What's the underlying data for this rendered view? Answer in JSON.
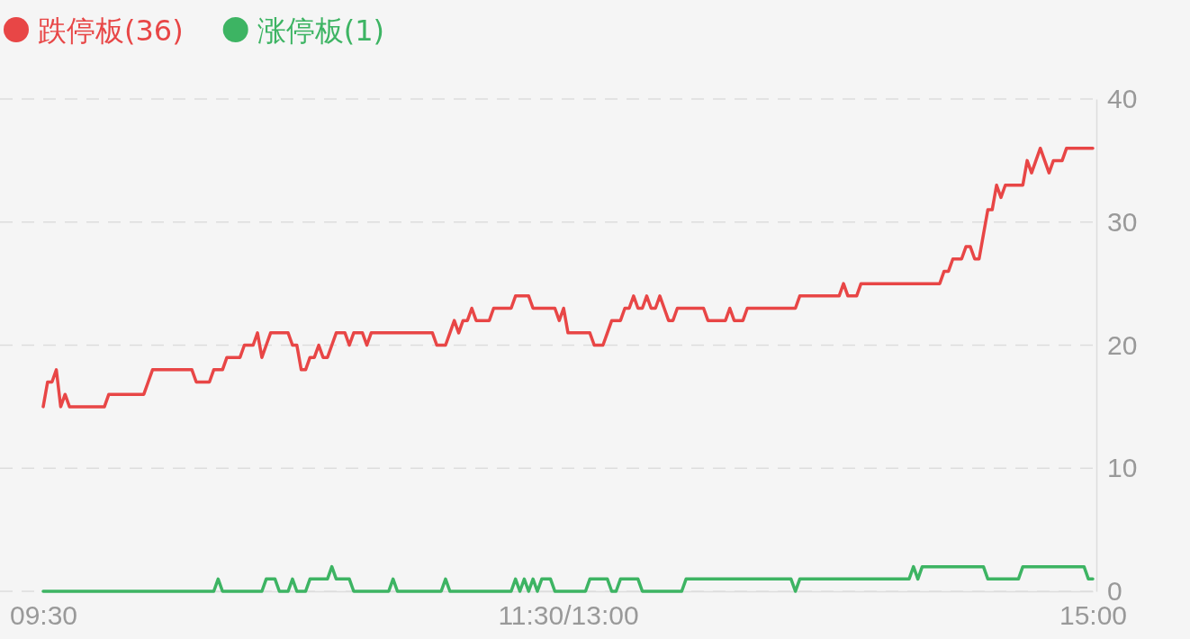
{
  "chart_data": {
    "type": "line",
    "categories": [
      "09:30",
      null,
      null,
      null,
      null,
      null,
      null,
      null,
      null,
      null,
      null,
      null,
      null,
      null,
      null,
      null,
      null,
      null,
      null,
      null,
      null,
      null,
      null,
      null,
      null,
      null,
      null,
      null,
      null,
      null,
      null,
      null,
      null,
      null,
      null,
      null,
      null,
      null,
      null,
      null,
      null,
      null,
      null,
      null,
      null,
      null,
      null,
      null,
      null,
      null,
      null,
      null,
      null,
      null,
      null,
      null,
      null,
      null,
      null,
      null,
      null,
      null,
      null,
      null,
      null,
      null,
      null,
      null,
      null,
      null,
      null,
      null,
      null,
      null,
      null,
      null,
      null,
      null,
      null,
      null,
      null,
      null,
      null,
      null,
      null,
      null,
      null,
      null,
      null,
      null,
      null,
      null,
      null,
      null,
      null,
      null,
      null,
      null,
      null,
      null,
      null,
      null,
      null,
      null,
      null,
      null,
      null,
      null,
      null,
      null,
      null,
      null,
      null,
      null,
      null,
      null,
      null,
      null,
      null,
      null,
      "11:30/13:00",
      null,
      null,
      null,
      null,
      null,
      null,
      null,
      null,
      null,
      null,
      null,
      null,
      null,
      null,
      null,
      null,
      null,
      null,
      null,
      null,
      null,
      null,
      null,
      null,
      null,
      null,
      null,
      null,
      null,
      null,
      null,
      null,
      null,
      null,
      null,
      null,
      null,
      null,
      null,
      null,
      null,
      null,
      null,
      null,
      null,
      null,
      null,
      null,
      null,
      null,
      null,
      null,
      null,
      null,
      null,
      null,
      null,
      null,
      null,
      null,
      null,
      null,
      null,
      null,
      null,
      null,
      null,
      null,
      null,
      null,
      null,
      null,
      null,
      null,
      null,
      null,
      null,
      null,
      null,
      null,
      null,
      null,
      null,
      null,
      null,
      null,
      null,
      null,
      null,
      null,
      null,
      null,
      null,
      null,
      null,
      null,
      null,
      null,
      null,
      null,
      null,
      null,
      null,
      null,
      null,
      null,
      null,
      null,
      null,
      null,
      null,
      null,
      null,
      null,
      null,
      null,
      null,
      null,
      null,
      "15:00"
    ],
    "ylim": [
      0,
      40
    ],
    "yticks": [
      0,
      10,
      20,
      30,
      40
    ],
    "grid": "y",
    "legend": "top left",
    "line_style": "solid",
    "marker": "none",
    "series": [
      {
        "name": "跌停板(36)",
        "color": "#e84646",
        "values": [
          15,
          17,
          17,
          18,
          15,
          16,
          15,
          15,
          15,
          15,
          15,
          15,
          15,
          15,
          15,
          16,
          16,
          16,
          16,
          16,
          16,
          16,
          16,
          16,
          17,
          18,
          18,
          18,
          18,
          18,
          18,
          18,
          18,
          18,
          18,
          17,
          17,
          17,
          17,
          18,
          18,
          18,
          19,
          19,
          19,
          19,
          20,
          20,
          20,
          21,
          19,
          20,
          21,
          21,
          21,
          21,
          21,
          20,
          20,
          18,
          18,
          19,
          19,
          20,
          19,
          19,
          20,
          21,
          21,
          21,
          20,
          21,
          21,
          21,
          20,
          21,
          21,
          21,
          21,
          21,
          21,
          21,
          21,
          21,
          21,
          21,
          21,
          21,
          21,
          21,
          20,
          20,
          20,
          21,
          22,
          21,
          22,
          22,
          23,
          22,
          22,
          22,
          22,
          23,
          23,
          23,
          23,
          23,
          24,
          24,
          24,
          24,
          23,
          23,
          23,
          23,
          23,
          23,
          22,
          23,
          21,
          21,
          21,
          21,
          21,
          21,
          20,
          20,
          20,
          21,
          22,
          22,
          22,
          23,
          23,
          24,
          23,
          23,
          24,
          23,
          23,
          24,
          23,
          22,
          22,
          23,
          23,
          23,
          23,
          23,
          23,
          23,
          22,
          22,
          22,
          22,
          22,
          23,
          22,
          22,
          22,
          23,
          23,
          23,
          23,
          23,
          23,
          23,
          23,
          23,
          23,
          23,
          23,
          24,
          24,
          24,
          24,
          24,
          24,
          24,
          24,
          24,
          24,
          25,
          24,
          24,
          24,
          25,
          25,
          25,
          25,
          25,
          25,
          25,
          25,
          25,
          25,
          25,
          25,
          25,
          25,
          25,
          25,
          25,
          25,
          25,
          26,
          26,
          27,
          27,
          27,
          28,
          28,
          27,
          27,
          29,
          31,
          31,
          33,
          32,
          33,
          33,
          33,
          33,
          33,
          35,
          34,
          35,
          36,
          35,
          34,
          35,
          35,
          35,
          36,
          36,
          36,
          36,
          36,
          36,
          36
        ]
      },
      {
        "name": "涨停板(1)",
        "color": "#3db463",
        "values": [
          0,
          0,
          0,
          0,
          0,
          0,
          0,
          0,
          0,
          0,
          0,
          0,
          0,
          0,
          0,
          0,
          0,
          0,
          0,
          0,
          0,
          0,
          0,
          0,
          0,
          0,
          0,
          0,
          0,
          0,
          0,
          0,
          0,
          0,
          0,
          0,
          0,
          0,
          0,
          0,
          1,
          0,
          0,
          0,
          0,
          0,
          0,
          0,
          0,
          0,
          0,
          1,
          1,
          1,
          0,
          0,
          0,
          1,
          0,
          0,
          0,
          1,
          1,
          1,
          1,
          1,
          2,
          1,
          1,
          1,
          1,
          0,
          0,
          0,
          0,
          0,
          0,
          0,
          0,
          0,
          1,
          0,
          0,
          0,
          0,
          0,
          0,
          0,
          0,
          0,
          0,
          0,
          1,
          0,
          0,
          0,
          0,
          0,
          0,
          0,
          0,
          0,
          0,
          0,
          0,
          0,
          0,
          0,
          1,
          0,
          1,
          0,
          1,
          0,
          1,
          1,
          1,
          0,
          0,
          0,
          0,
          0,
          0,
          0,
          0,
          1,
          1,
          1,
          1,
          1,
          0,
          0,
          1,
          1,
          1,
          1,
          1,
          0,
          0,
          0,
          0,
          0,
          0,
          0,
          0,
          0,
          0,
          1,
          1,
          1,
          1,
          1,
          1,
          1,
          1,
          1,
          1,
          1,
          1,
          1,
          1,
          1,
          1,
          1,
          1,
          1,
          1,
          1,
          1,
          1,
          1,
          1,
          0,
          1,
          1,
          1,
          1,
          1,
          1,
          1,
          1,
          1,
          1,
          1,
          1,
          1,
          1,
          1,
          1,
          1,
          1,
          1,
          1,
          1,
          1,
          1,
          1,
          1,
          1,
          2,
          1,
          2,
          2,
          2,
          2,
          2,
          2,
          2,
          2,
          2,
          2,
          2,
          2,
          2,
          2,
          2,
          1,
          1,
          1,
          1,
          1,
          1,
          1,
          1,
          2,
          2,
          2,
          2,
          2,
          2,
          2,
          2,
          2,
          2,
          2,
          2,
          2,
          2,
          2,
          1,
          1
        ]
      }
    ]
  }
}
